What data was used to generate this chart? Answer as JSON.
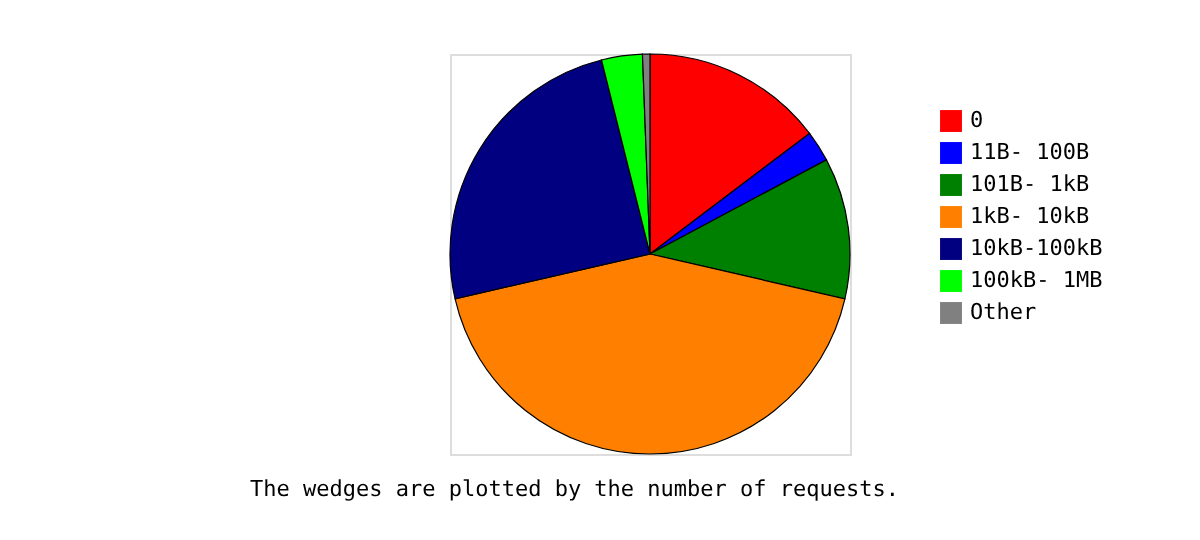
{
  "chart_data": {
    "type": "pie",
    "categories": [
      "0",
      "11B- 100B",
      "101B-  1kB",
      "1kB- 10kB",
      "10kB-100kB",
      "100kB-  1MB",
      "Other"
    ],
    "values": [
      14.7,
      2.5,
      11.4,
      42.8,
      24.7,
      3.3,
      0.6
    ],
    "colors": [
      "#ff0000",
      "#0000ff",
      "#008000",
      "#ff8000",
      "#000080",
      "#00ff00",
      "#808080"
    ],
    "legend": "right",
    "annotations": [
      "The wedges are plotted by the number of requests."
    ]
  }
}
